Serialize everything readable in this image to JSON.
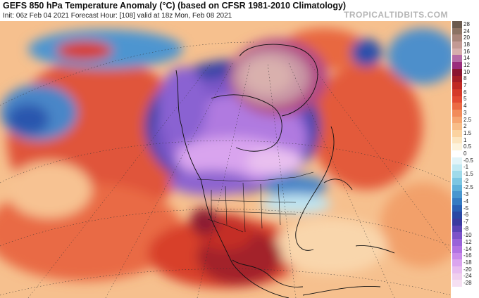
{
  "header": {
    "title": "GEFS 850 hPa Temperature Anomaly (°C) (based on CFSR 1981-2010 Climatology)",
    "subtitle": "Init: 06z Feb 04 2021   Forecast Hour: [108]   valid at 18z Mon, Feb 08 2021",
    "brand": "TROPICALTIDBITS.COM"
  },
  "legend": {
    "items": [
      {
        "label": "28",
        "color": "#6b5a4e"
      },
      {
        "label": "24",
        "color": "#8c7263"
      },
      {
        "label": "20",
        "color": "#a9857a"
      },
      {
        "label": "18",
        "color": "#c39a94"
      },
      {
        "label": "16",
        "color": "#d7aeac"
      },
      {
        "label": "14",
        "color": "#b66aa4"
      },
      {
        "label": "12",
        "color": "#9a2c7c"
      },
      {
        "label": "10",
        "color": "#8a1530"
      },
      {
        "label": "8",
        "color": "#a51e26"
      },
      {
        "label": "7",
        "color": "#c02a24"
      },
      {
        "label": "6",
        "color": "#d53a2a"
      },
      {
        "label": "5",
        "color": "#e34a33"
      },
      {
        "label": "4",
        "color": "#ec6a44"
      },
      {
        "label": "3",
        "color": "#f28c5a"
      },
      {
        "label": "2.5",
        "color": "#f6a570"
      },
      {
        "label": "2",
        "color": "#f8bd88"
      },
      {
        "label": "1.5",
        "color": "#fbd3a0"
      },
      {
        "label": "1",
        "color": "#fce5bf"
      },
      {
        "label": "0.5",
        "color": "#fdf3dc"
      },
      {
        "label": "0",
        "color": "#ffffff"
      },
      {
        "label": "-0.5",
        "color": "#e2f4f8"
      },
      {
        "label": "-1",
        "color": "#c2e9f2"
      },
      {
        "label": "-1.5",
        "color": "#9fdaea"
      },
      {
        "label": "-2",
        "color": "#7cc6e2"
      },
      {
        "label": "-2.5",
        "color": "#5fb0d9"
      },
      {
        "label": "-3",
        "color": "#4896cf"
      },
      {
        "label": "-4",
        "color": "#357bc3"
      },
      {
        "label": "-5",
        "color": "#2a5fb4"
      },
      {
        "label": "-6",
        "color": "#2a48a4"
      },
      {
        "label": "-7",
        "color": "#3a3aa0"
      },
      {
        "label": "-8",
        "color": "#5a43b5"
      },
      {
        "label": "-10",
        "color": "#7c52c8"
      },
      {
        "label": "-12",
        "color": "#9962d8"
      },
      {
        "label": "-14",
        "color": "#b272e2"
      },
      {
        "label": "-16",
        "color": "#c98aea"
      },
      {
        "label": "-18",
        "color": "#dba4ee"
      },
      {
        "label": "-20",
        "color": "#e8bcef"
      },
      {
        "label": "-24",
        "color": "#f0cfee"
      },
      {
        "label": "-28",
        "color": "#f6e0f2"
      }
    ]
  }
}
